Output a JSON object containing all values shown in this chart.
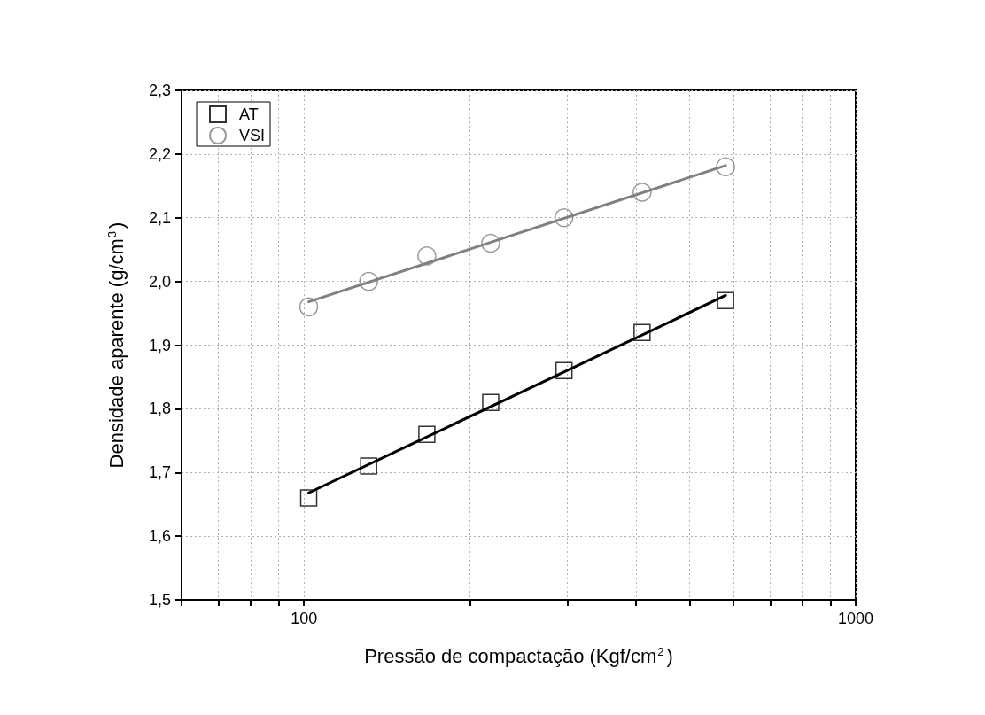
{
  "chart_data": {
    "type": "scatter",
    "xlabel": "Pressão de compactação (Kgf/cm$^{2}$)",
    "ylabel": "Densidade aparente (g/cm$^{3}$)",
    "log": "x",
    "xlim": [
      60,
      1000
    ],
    "xticks": [
      {
        "value": 60,
        "label": null
      },
      {
        "value": 70,
        "label": null
      },
      {
        "value": 80,
        "label": null
      },
      {
        "value": 90,
        "label": null
      },
      100,
      {
        "value": 200,
        "label": null
      },
      {
        "value": 300,
        "label": null
      },
      {
        "value": 400,
        "label": null
      },
      {
        "value": 500,
        "label": null
      },
      {
        "value": 600,
        "label": null
      },
      {
        "value": 700,
        "label": null
      },
      {
        "value": 800,
        "label": null
      },
      {
        "value": 900,
        "label": null
      },
      1000
    ],
    "ylim": [
      1.5,
      2.3
    ],
    "yticks": [
      {
        "value": 1.5,
        "label": "1,5"
      },
      {
        "value": 1.6,
        "label": "1,6"
      },
      {
        "value": 1.7,
        "label": "1,7"
      },
      {
        "value": 1.8,
        "label": "1,8"
      },
      {
        "value": 1.9,
        "label": "1,9"
      },
      {
        "value": 2.0,
        "label": "2,0"
      },
      {
        "value": 2.1,
        "label": "2,1"
      },
      {
        "value": 2.2,
        "label": "2,2"
      },
      {
        "value": 2.3,
        "label": "2,3"
      }
    ],
    "grid": true,
    "legend": "top left",
    "series": [
      {
        "name": "AT",
        "marker": "square",
        "color": "#000000",
        "x": [
          102,
          131,
          167,
          218,
          296,
          410,
          581
        ],
        "values": [
          1.66,
          1.71,
          1.76,
          1.81,
          1.86,
          1.92,
          1.97
        ]
      },
      {
        "name": "VSI",
        "marker": "circle",
        "color": "#808080",
        "x": [
          102,
          131,
          167,
          218,
          296,
          410,
          581
        ],
        "values": [
          1.96,
          2.0,
          2.04,
          2.06,
          2.1,
          2.14,
          2.18
        ]
      },
      {
        "type": "line",
        "marker": "none",
        "color": "#000000",
        "x": [
          102,
          581
        ],
        "values": [
          1.668,
          1.978
        ]
      },
      {
        "type": "line",
        "marker": "none",
        "color": "#808080",
        "x": [
          102,
          581
        ],
        "values": [
          1.968,
          2.182
        ]
      }
    ]
  }
}
